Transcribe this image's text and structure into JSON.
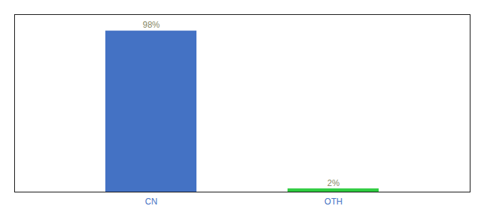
{
  "chart_data": {
    "type": "bar",
    "categories": [
      "CN",
      "OTH"
    ],
    "values": [
      98,
      2
    ],
    "value_labels": [
      "98%",
      "2%"
    ],
    "colors": [
      "#4472C4",
      "#2ECC40"
    ],
    "ylim": [
      0,
      108
    ],
    "data_labels": true,
    "tick_labels": "x",
    "grid": false
  }
}
